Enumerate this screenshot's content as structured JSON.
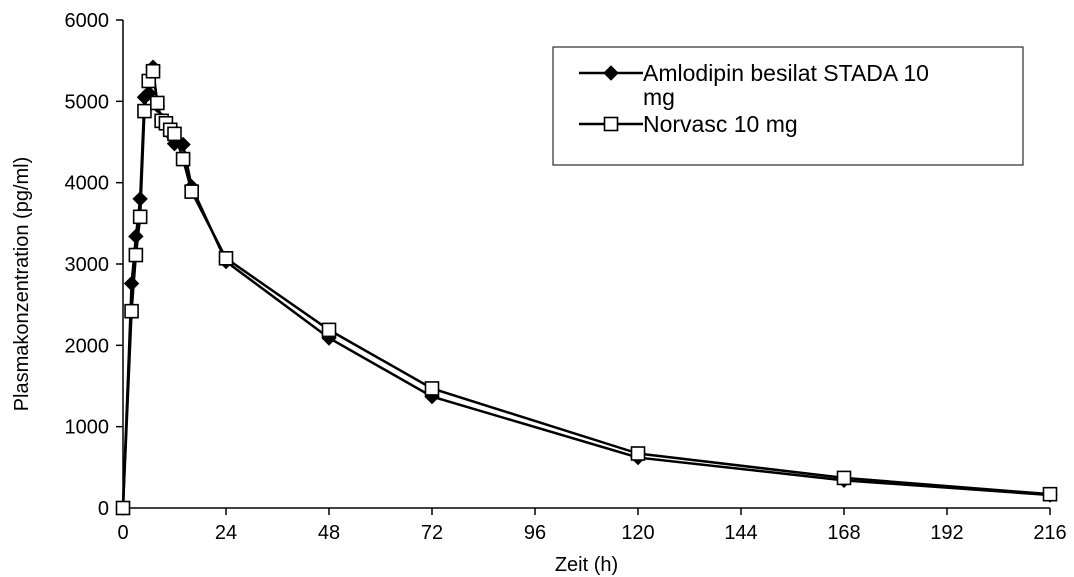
{
  "chart_data": {
    "type": "line",
    "xlabel": "Zeit (h)",
    "ylabel": "Plasmakonzentration (pg/ml)",
    "xlim": [
      0,
      216
    ],
    "ylim": [
      0,
      6000
    ],
    "xticks": [
      0,
      24,
      48,
      72,
      96,
      120,
      144,
      168,
      192,
      216
    ],
    "yticks": [
      0,
      1000,
      2000,
      3000,
      4000,
      5000,
      6000
    ],
    "grid": false,
    "legend_position": "top-right",
    "series": [
      {
        "name": "Amlodipin besilat STADA 10 mg",
        "marker": "filled-diamond",
        "color": "#000000",
        "x": [
          0,
          2,
          3,
          4,
          5,
          6,
          7,
          8,
          9,
          10,
          11,
          12,
          14,
          16,
          24,
          48,
          72,
          120,
          168,
          216
        ],
        "y": [
          0,
          2760,
          3340,
          3800,
          5050,
          5100,
          5420,
          4950,
          4770,
          4720,
          4600,
          4480,
          4470,
          3950,
          3030,
          2090,
          1370,
          620,
          340,
          160
        ]
      },
      {
        "name": "Norvasc 10 mg",
        "marker": "open-square",
        "color": "#000000",
        "x": [
          0,
          2,
          3,
          4,
          5,
          6,
          7,
          8,
          9,
          10,
          11,
          12,
          14,
          16,
          24,
          48,
          72,
          120,
          168,
          216
        ],
        "y": [
          0,
          2420,
          3110,
          3580,
          4880,
          5250,
          5370,
          4980,
          4760,
          4730,
          4650,
          4600,
          4290,
          3890,
          3070,
          2190,
          1470,
          670,
          370,
          170
        ]
      }
    ]
  }
}
